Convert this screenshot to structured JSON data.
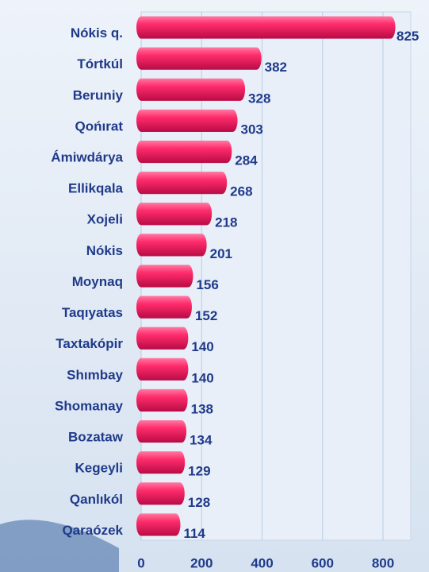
{
  "chart_data": {
    "type": "bar",
    "orientation": "horizontal",
    "categories": [
      "Nókis q.",
      "Tórtkúl",
      "Beruniy",
      "Qońırat",
      "Ámiwdárya",
      "Ellikqala",
      "Xojeli",
      "Nókis",
      "Moynaq",
      "Taqıyatas",
      "Taxtakópir",
      "Shımbay",
      "Shomanay",
      "Bozataw",
      "Kegeyli",
      "Qanlıkól",
      "Qaraózek"
    ],
    "values": [
      825,
      382,
      328,
      303,
      284,
      268,
      218,
      201,
      156,
      152,
      140,
      140,
      138,
      134,
      129,
      128,
      114
    ],
    "color": "#f5276a",
    "xlim": [
      0,
      800
    ],
    "xticks": [
      0,
      200,
      400,
      600,
      800
    ],
    "grid": true
  }
}
